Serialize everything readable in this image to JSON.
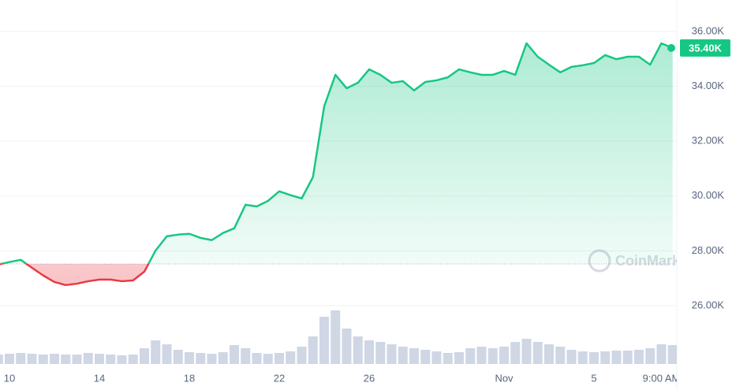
{
  "chart_data": {
    "type": "line",
    "categories": [
      null,
      "10",
      null,
      null,
      null,
      null,
      null,
      null,
      null,
      "14",
      null,
      null,
      null,
      null,
      null,
      null,
      null,
      "18",
      null,
      null,
      null,
      null,
      null,
      null,
      null,
      "22",
      null,
      null,
      null,
      null,
      null,
      null,
      null,
      "26",
      null,
      null,
      null,
      null,
      null,
      null,
      null,
      null,
      null,
      null,
      null,
      "Nov",
      null,
      null,
      null,
      null,
      null,
      null,
      null,
      "5",
      null,
      null,
      null,
      null,
      null,
      "9:00 AM",
      null
    ],
    "values": [
      27500,
      27590,
      27670,
      27380,
      27100,
      26860,
      26750,
      26800,
      26890,
      26950,
      26950,
      26890,
      26920,
      27240,
      28010,
      28530,
      28590,
      28620,
      28470,
      28390,
      28650,
      28820,
      29680,
      29620,
      29820,
      30170,
      30030,
      29910,
      30690,
      33270,
      34420,
      33930,
      34130,
      34620,
      34420,
      34130,
      34190,
      33850,
      34160,
      34220,
      34330,
      34620,
      34510,
      34420,
      34420,
      34560,
      34420,
      35570,
      35080,
      34790,
      34510,
      34710,
      34770,
      34850,
      35140,
      34990,
      35080,
      35080,
      34790,
      35570,
      35400
    ],
    "value_labels": {
      "60": "35.40K"
    },
    "volume": [
      12,
      13,
      14,
      13,
      12,
      13,
      12,
      12,
      14,
      13,
      12,
      11,
      12,
      20,
      30,
      25,
      18,
      15,
      14,
      13,
      15,
      24,
      20,
      14,
      13,
      14,
      16,
      22,
      35,
      60,
      68,
      45,
      35,
      30,
      28,
      25,
      22,
      20,
      18,
      16,
      14,
      15,
      20,
      22,
      20,
      22,
      28,
      32,
      28,
      25,
      22,
      18,
      16,
      15,
      16,
      17,
      17,
      18,
      20,
      25,
      24
    ],
    "volume_ylim": [
      0,
      80
    ],
    "reference_line": 27520,
    "up_color": "#16c784",
    "down_color": "#ea3943",
    "volume_color": "#cfd6e4",
    "ylim": [
      23870,
      37150
    ],
    "yticks": [
      {
        "value": 26000,
        "label": "26.00K"
      },
      {
        "value": 28000,
        "label": "28.00K"
      },
      {
        "value": 30000,
        "label": "30.00K"
      },
      {
        "value": 32000,
        "label": "32.00K"
      },
      {
        "value": 34000,
        "label": "34.00K"
      },
      {
        "value": 36000,
        "label": "36.00K"
      }
    ],
    "grid": true,
    "watermark": "CoinMarketCap"
  }
}
